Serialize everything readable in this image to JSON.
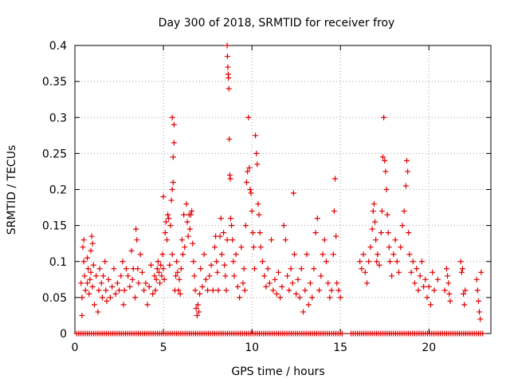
{
  "chart_data": {
    "type": "scatter",
    "title": "Day 300 of 2018, SRMTID for receiver froy",
    "xlabel": "GPS time / hours",
    "ylabel": "SRMTID / TECUs",
    "xlim": [
      0,
      23.5
    ],
    "ylim": [
      0,
      0.4
    ],
    "xticks": [
      0,
      5,
      10,
      15,
      20
    ],
    "yticks": [
      0,
      0.05,
      0.1,
      0.15,
      0.2,
      0.25,
      0.3,
      0.35,
      0.4
    ],
    "xtick_labels": [
      "0",
      "5",
      "10",
      "15",
      "20"
    ],
    "ytick_labels": [
      "0",
      "0.05",
      "0.1",
      "0.15",
      "0.2",
      "0.25",
      "0.3",
      "0.35",
      "0.4"
    ],
    "grid": true,
    "marker": "+",
    "marker_color": "#e00000",
    "series": [
      {
        "name": "SRMTID",
        "points": [
          [
            0.35,
            0.07
          ],
          [
            0.4,
            0.05
          ],
          [
            0.4,
            0.025
          ],
          [
            0.45,
            0.12
          ],
          [
            0.5,
            0.1
          ],
          [
            0.5,
            0.13
          ],
          [
            0.55,
            0.08
          ],
          [
            0.6,
            0.06
          ],
          [
            0.7,
            0.105
          ],
          [
            0.7,
            0.07
          ],
          [
            0.75,
            0.09
          ],
          [
            0.8,
            0.055
          ],
          [
            0.85,
            0.075
          ],
          [
            0.9,
            0.115
          ],
          [
            0.9,
            0.085
          ],
          [
            0.95,
            0.135
          ],
          [
            1.0,
            0.125
          ],
          [
            1.0,
            0.065
          ],
          [
            1.05,
            0.095
          ],
          [
            1.1,
            0.04
          ],
          [
            1.2,
            0.08
          ],
          [
            1.3,
            0.03
          ],
          [
            1.35,
            0.06
          ],
          [
            1.4,
            0.09
          ],
          [
            1.5,
            0.07
          ],
          [
            1.55,
            0.05
          ],
          [
            1.6,
            0.08
          ],
          [
            1.7,
            0.1
          ],
          [
            1.75,
            0.06
          ],
          [
            1.8,
            0.045
          ],
          [
            1.9,
            0.075
          ],
          [
            2.0,
            0.05
          ],
          [
            2.1,
            0.065
          ],
          [
            2.2,
            0.09
          ],
          [
            2.3,
            0.055
          ],
          [
            2.4,
            0.07
          ],
          [
            2.5,
            0.06
          ],
          [
            2.6,
            0.08
          ],
          [
            2.7,
            0.1
          ],
          [
            2.75,
            0.04
          ],
          [
            2.8,
            0.06
          ],
          [
            2.9,
            0.09
          ],
          [
            3.0,
            0.08
          ],
          [
            3.1,
            0.065
          ],
          [
            3.2,
            0.115
          ],
          [
            3.25,
            0.075
          ],
          [
            3.3,
            0.09
          ],
          [
            3.4,
            0.05
          ],
          [
            3.45,
            0.145
          ],
          [
            3.5,
            0.13
          ],
          [
            3.55,
            0.09
          ],
          [
            3.6,
            0.07
          ],
          [
            3.7,
            0.11
          ],
          [
            3.8,
            0.085
          ],
          [
            3.9,
            0.06
          ],
          [
            4.0,
            0.07
          ],
          [
            4.1,
            0.04
          ],
          [
            4.2,
            0.065
          ],
          [
            4.3,
            0.095
          ],
          [
            4.4,
            0.055
          ],
          [
            4.5,
            0.08
          ],
          [
            4.55,
            0.06
          ],
          [
            4.6,
            0.075
          ],
          [
            4.65,
            0.09
          ],
          [
            4.7,
            0.1
          ],
          [
            4.75,
            0.085
          ],
          [
            4.8,
            0.07
          ],
          [
            4.85,
            0.095
          ],
          [
            4.9,
            0.08
          ],
          [
            4.95,
            0.11
          ],
          [
            5.0,
            0.09
          ],
          [
            5.0,
            0.19
          ],
          [
            5.05,
            0.075
          ],
          [
            5.1,
            0.14
          ],
          [
            5.15,
            0.155
          ],
          [
            5.2,
            0.13
          ],
          [
            5.25,
            0.165
          ],
          [
            5.3,
            0.16
          ],
          [
            5.35,
            0.095
          ],
          [
            5.4,
            0.15
          ],
          [
            5.45,
            0.185
          ],
          [
            5.5,
            0.2
          ],
          [
            5.5,
            0.3
          ],
          [
            5.5,
            0.11
          ],
          [
            5.55,
            0.21
          ],
          [
            5.55,
            0.245
          ],
          [
            5.6,
            0.29
          ],
          [
            5.6,
            0.265
          ],
          [
            5.65,
            0.06
          ],
          [
            5.7,
            0.08
          ],
          [
            5.75,
            0.1
          ],
          [
            5.8,
            0.085
          ],
          [
            5.85,
            0.06
          ],
          [
            5.9,
            0.075
          ],
          [
            5.95,
            0.055
          ],
          [
            6.0,
            0.09
          ],
          [
            6.05,
            0.13
          ],
          [
            6.1,
            0.11
          ],
          [
            6.15,
            0.165
          ],
          [
            6.2,
            0.12
          ],
          [
            6.3,
            0.18
          ],
          [
            6.35,
            0.155
          ],
          [
            6.4,
            0.135
          ],
          [
            6.45,
            0.165
          ],
          [
            6.5,
            0.145
          ],
          [
            6.55,
            0.165
          ],
          [
            6.6,
            0.17
          ],
          [
            6.65,
            0.125
          ],
          [
            6.7,
            0.1
          ],
          [
            6.75,
            0.08
          ],
          [
            6.8,
            0.06
          ],
          [
            6.85,
            0.035
          ],
          [
            6.9,
            0.025
          ],
          [
            6.95,
            0.04
          ],
          [
            7.0,
            0.03
          ],
          [
            7.05,
            0.055
          ],
          [
            7.1,
            0.09
          ],
          [
            7.2,
            0.065
          ],
          [
            7.3,
            0.11
          ],
          [
            7.4,
            0.075
          ],
          [
            7.5,
            0.06
          ],
          [
            7.6,
            0.08
          ],
          [
            7.7,
            0.095
          ],
          [
            7.8,
            0.06
          ],
          [
            7.9,
            0.12
          ],
          [
            7.95,
            0.135
          ],
          [
            8.0,
            0.1
          ],
          [
            8.05,
            0.085
          ],
          [
            8.1,
            0.06
          ],
          [
            8.2,
            0.135
          ],
          [
            8.25,
            0.16
          ],
          [
            8.3,
            0.11
          ],
          [
            8.4,
            0.14
          ],
          [
            8.45,
            0.095
          ],
          [
            8.5,
            0.08
          ],
          [
            8.55,
            0.06
          ],
          [
            8.6,
            0.13
          ],
          [
            8.6,
            0.4
          ],
          [
            8.62,
            0.385
          ],
          [
            8.64,
            0.37
          ],
          [
            8.66,
            0.36
          ],
          [
            8.68,
            0.355
          ],
          [
            8.7,
            0.34
          ],
          [
            8.72,
            0.27
          ],
          [
            8.75,
            0.22
          ],
          [
            8.78,
            0.215
          ],
          [
            8.8,
            0.16
          ],
          [
            8.85,
            0.15
          ],
          [
            8.9,
            0.13
          ],
          [
            8.95,
            0.1
          ],
          [
            9.0,
            0.08
          ],
          [
            9.1,
            0.11
          ],
          [
            9.2,
            0.065
          ],
          [
            9.3,
            0.05
          ],
          [
            9.4,
            0.12
          ],
          [
            9.5,
            0.07
          ],
          [
            9.55,
            0.09
          ],
          [
            9.6,
            0.06
          ],
          [
            9.65,
            0.15
          ],
          [
            9.7,
            0.21
          ],
          [
            9.75,
            0.225
          ],
          [
            9.8,
            0.3
          ],
          [
            9.85,
            0.23
          ],
          [
            9.9,
            0.2
          ],
          [
            9.95,
            0.195
          ],
          [
            10.0,
            0.17
          ],
          [
            10.05,
            0.14
          ],
          [
            10.1,
            0.12
          ],
          [
            10.15,
            0.09
          ],
          [
            10.2,
            0.275
          ],
          [
            10.25,
            0.25
          ],
          [
            10.3,
            0.235
          ],
          [
            10.35,
            0.18
          ],
          [
            10.4,
            0.165
          ],
          [
            10.45,
            0.14
          ],
          [
            10.5,
            0.12
          ],
          [
            10.6,
            0.1
          ],
          [
            10.7,
            0.08
          ],
          [
            10.8,
            0.065
          ],
          [
            10.9,
            0.09
          ],
          [
            11.0,
            0.07
          ],
          [
            11.1,
            0.13
          ],
          [
            11.2,
            0.06
          ],
          [
            11.3,
            0.075
          ],
          [
            11.4,
            0.055
          ],
          [
            11.5,
            0.085
          ],
          [
            11.6,
            0.05
          ],
          [
            11.7,
            0.065
          ],
          [
            11.8,
            0.15
          ],
          [
            11.9,
            0.13
          ],
          [
            12.0,
            0.08
          ],
          [
            12.1,
            0.06
          ],
          [
            12.2,
            0.09
          ],
          [
            12.3,
            0.07
          ],
          [
            12.35,
            0.195
          ],
          [
            12.4,
            0.11
          ],
          [
            12.5,
            0.055
          ],
          [
            12.6,
            0.075
          ],
          [
            12.7,
            0.05
          ],
          [
            12.8,
            0.09
          ],
          [
            12.9,
            0.03
          ],
          [
            13.0,
            0.06
          ],
          [
            13.1,
            0.11
          ],
          [
            13.2,
            0.04
          ],
          [
            13.3,
            0.07
          ],
          [
            13.4,
            0.05
          ],
          [
            13.5,
            0.09
          ],
          [
            13.6,
            0.14
          ],
          [
            13.7,
            0.16
          ],
          [
            13.8,
            0.06
          ],
          [
            13.9,
            0.08
          ],
          [
            14.0,
            0.11
          ],
          [
            14.1,
            0.13
          ],
          [
            14.2,
            0.1
          ],
          [
            14.3,
            0.07
          ],
          [
            14.4,
            0.05
          ],
          [
            14.5,
            0.06
          ],
          [
            14.6,
            0.11
          ],
          [
            14.65,
            0.17
          ],
          [
            14.7,
            0.215
          ],
          [
            14.75,
            0.135
          ],
          [
            14.8,
            0.07
          ],
          [
            14.9,
            0.06
          ],
          [
            15.0,
            0.05
          ],
          [
            16.1,
            0.1
          ],
          [
            16.2,
            0.09
          ],
          [
            16.3,
            0.11
          ],
          [
            16.4,
            0.085
          ],
          [
            16.5,
            0.07
          ],
          [
            16.6,
            0.1
          ],
          [
            16.7,
            0.12
          ],
          [
            16.8,
            0.145
          ],
          [
            16.85,
            0.17
          ],
          [
            16.9,
            0.18
          ],
          [
            16.95,
            0.155
          ],
          [
            17.0,
            0.13
          ],
          [
            17.05,
            0.1
          ],
          [
            17.1,
            0.11
          ],
          [
            17.2,
            0.095
          ],
          [
            17.3,
            0.14
          ],
          [
            17.35,
            0.17
          ],
          [
            17.4,
            0.245
          ],
          [
            17.45,
            0.3
          ],
          [
            17.5,
            0.24
          ],
          [
            17.55,
            0.225
          ],
          [
            17.6,
            0.2
          ],
          [
            17.65,
            0.165
          ],
          [
            17.7,
            0.14
          ],
          [
            17.75,
            0.12
          ],
          [
            17.8,
            0.1
          ],
          [
            17.9,
            0.08
          ],
          [
            18.0,
            0.11
          ],
          [
            18.1,
            0.13
          ],
          [
            18.2,
            0.1
          ],
          [
            18.3,
            0.085
          ],
          [
            18.4,
            0.12
          ],
          [
            18.5,
            0.15
          ],
          [
            18.6,
            0.17
          ],
          [
            18.7,
            0.205
          ],
          [
            18.75,
            0.24
          ],
          [
            18.8,
            0.225
          ],
          [
            18.85,
            0.14
          ],
          [
            18.9,
            0.11
          ],
          [
            19.0,
            0.085
          ],
          [
            19.1,
            0.1
          ],
          [
            19.2,
            0.07
          ],
          [
            19.3,
            0.09
          ],
          [
            19.4,
            0.06
          ],
          [
            19.5,
            0.08
          ],
          [
            19.6,
            0.1
          ],
          [
            19.7,
            0.065
          ],
          [
            19.8,
            0.075
          ],
          [
            19.9,
            0.05
          ],
          [
            20.0,
            0.065
          ],
          [
            20.1,
            0.04
          ],
          [
            20.2,
            0.085
          ],
          [
            20.3,
            0.06
          ],
          [
            20.5,
            0.075
          ],
          [
            20.9,
            0.06
          ],
          [
            21.0,
            0.09
          ],
          [
            21.05,
            0.08
          ],
          [
            21.1,
            0.07
          ],
          [
            21.15,
            0.055
          ],
          [
            21.2,
            0.045
          ],
          [
            21.8,
            0.1
          ],
          [
            21.85,
            0.085
          ],
          [
            21.9,
            0.09
          ],
          [
            21.95,
            0.055
          ],
          [
            22.0,
            0.04
          ],
          [
            22.05,
            0.06
          ],
          [
            22.7,
            0.075
          ],
          [
            22.75,
            0.06
          ],
          [
            22.8,
            0.045
          ],
          [
            22.85,
            0.03
          ],
          [
            22.9,
            0.02
          ],
          [
            22.95,
            0.085
          ]
        ]
      }
    ],
    "baseline_points_y": 0,
    "baseline_x_ranges": [
      [
        0.1,
        15.2
      ],
      [
        15.6,
        23.1
      ]
    ]
  }
}
